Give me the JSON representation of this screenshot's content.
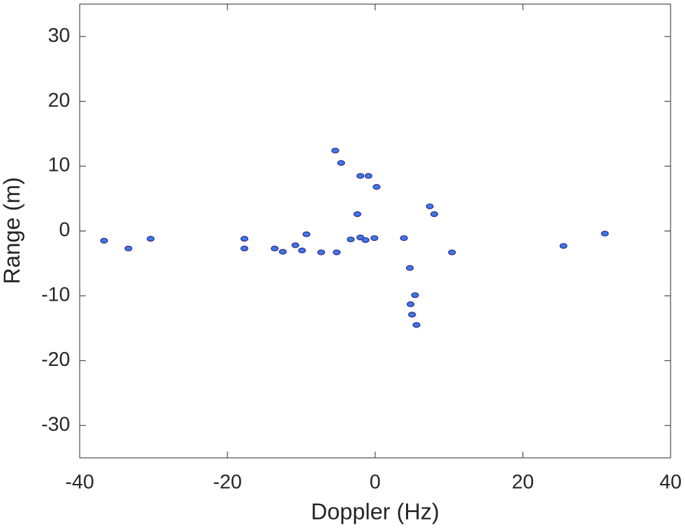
{
  "chart_data": {
    "type": "contour",
    "xlabel": "Doppler (Hz)",
    "ylabel": "Range (m)",
    "x": [
      -5.4,
      -4.6,
      0.2,
      -2.4,
      -9.3,
      -13.6,
      -12.5,
      -10.8,
      -9.9,
      -3.3,
      -2.0,
      -1.3,
      3.9,
      4.7,
      5.4,
      4.8,
      5.0,
      5.6,
      -2.0,
      -0.9,
      7.4,
      8.0,
      -36.7,
      -33.4,
      -30.4,
      10.4,
      25.5,
      31.1,
      -17.7,
      -17.7,
      -7.3,
      -5.2,
      -0.1
    ],
    "y": [
      12.4,
      10.5,
      6.8,
      2.6,
      -0.5,
      -2.7,
      -3.2,
      -2.2,
      -3.0,
      -1.3,
      -1.0,
      -1.4,
      -1.1,
      -5.7,
      -9.9,
      -11.3,
      -12.9,
      -14.5,
      8.5,
      8.5,
      3.8,
      2.6,
      -1.5,
      -2.7,
      -1.2,
      -3.3,
      -2.3,
      -0.4,
      -1.2,
      -2.7,
      -3.3,
      -3.3,
      -1.1
    ],
    "color": "#3b2c8c",
    "fill": "#3a7bea",
    "xlim": [
      -40,
      40
    ],
    "ylim": [
      -35,
      35
    ],
    "xticks": [
      -40,
      -20,
      0,
      20,
      40
    ],
    "yticks": [
      -30,
      -20,
      -10,
      0,
      10,
      20,
      30
    ]
  }
}
